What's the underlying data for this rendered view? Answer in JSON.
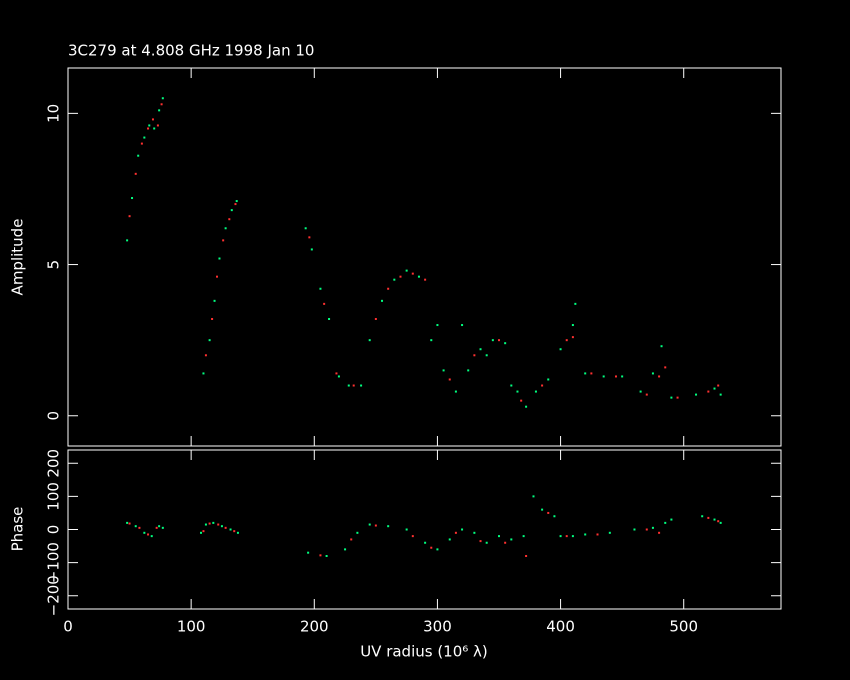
{
  "chart_data": [
    {
      "type": "scatter",
      "title": "3C279 at 4.808 GHz 1998 Jan 10",
      "y_label": "Amplitude",
      "xlim": [
        0,
        579
      ],
      "ylim": [
        -1,
        11.5
      ],
      "yticks": [
        0,
        5,
        10
      ],
      "series": [
        {
          "color": "#00ff80",
          "x": [
            48,
            52,
            57,
            62,
            66,
            70,
            74,
            77,
            110,
            115,
            119,
            123,
            128,
            133,
            137,
            193,
            198,
            205,
            212,
            220,
            228,
            238,
            245,
            255,
            265,
            275,
            285,
            295,
            305,
            315,
            325,
            335,
            345,
            355,
            365,
            372,
            380,
            390,
            400,
            410,
            412,
            420,
            435,
            450,
            465,
            475,
            482,
            490,
            510,
            525,
            530,
            300,
            320,
            340,
            360
          ],
          "values": [
            5.8,
            7.2,
            8.6,
            9.2,
            9.6,
            9.5,
            10.1,
            10.5,
            1.4,
            2.5,
            3.8,
            5.2,
            6.2,
            6.8,
            7.1,
            6.2,
            5.5,
            4.2,
            3.2,
            1.3,
            1.0,
            1.0,
            2.5,
            3.8,
            4.5,
            4.8,
            4.6,
            2.5,
            1.5,
            0.8,
            1.5,
            2.2,
            2.5,
            2.4,
            0.8,
            0.3,
            0.8,
            1.2,
            2.2,
            3.0,
            3.7,
            1.4,
            1.3,
            1.3,
            0.8,
            1.4,
            2.3,
            0.6,
            0.7,
            0.9,
            0.7,
            3.0,
            3.0,
            2.0,
            1.0
          ]
        },
        {
          "color": "#ff3030",
          "x": [
            50,
            55,
            60,
            65,
            69,
            73,
            76,
            112,
            117,
            121,
            126,
            131,
            136,
            196,
            208,
            218,
            232,
            250,
            260,
            270,
            280,
            290,
            310,
            330,
            350,
            368,
            385,
            405,
            410,
            425,
            445,
            470,
            480,
            485,
            495,
            520,
            528
          ],
          "values": [
            6.6,
            8.0,
            9.0,
            9.5,
            9.8,
            9.6,
            10.3,
            2.0,
            3.2,
            4.6,
            5.8,
            6.5,
            7.0,
            5.9,
            3.7,
            1.4,
            1.0,
            3.2,
            4.2,
            4.6,
            4.7,
            4.5,
            1.2,
            2.0,
            2.5,
            0.5,
            1.0,
            2.5,
            2.6,
            1.4,
            1.3,
            0.7,
            1.3,
            1.6,
            0.6,
            0.8,
            1.0
          ]
        }
      ]
    },
    {
      "type": "scatter",
      "y_label": "Phase",
      "x_label": "UV radius  (10⁶ λ)",
      "xlim": [
        0,
        579
      ],
      "ylim": [
        -240,
        240
      ],
      "xticks": [
        0,
        100,
        200,
        300,
        400,
        500
      ],
      "yticks": [
        {
          "value": -200,
          "label": "−200"
        },
        {
          "value": -100,
          "label": "−100"
        },
        0,
        100,
        200
      ],
      "series": [
        {
          "color": "#00ff80",
          "x": [
            48,
            55,
            62,
            68,
            74,
            77,
            108,
            112,
            118,
            125,
            132,
            138,
            195,
            210,
            225,
            235,
            245,
            260,
            275,
            290,
            300,
            310,
            320,
            330,
            340,
            350,
            360,
            370,
            378,
            385,
            395,
            400,
            410,
            420,
            440,
            460,
            475,
            485,
            490,
            515,
            525,
            530
          ],
          "values": [
            20,
            10,
            -10,
            -20,
            10,
            5,
            -10,
            15,
            20,
            10,
            0,
            -10,
            -70,
            -80,
            -60,
            -10,
            15,
            10,
            0,
            -40,
            -60,
            -30,
            0,
            -10,
            -40,
            -20,
            -30,
            -20,
            100,
            60,
            40,
            -20,
            -20,
            -15,
            -10,
            0,
            5,
            20,
            30,
            40,
            30,
            20
          ]
        },
        {
          "color": "#ff3030",
          "x": [
            50,
            58,
            65,
            72,
            110,
            115,
            122,
            128,
            135,
            205,
            230,
            250,
            280,
            295,
            315,
            335,
            355,
            372,
            390,
            405,
            430,
            470,
            480,
            520,
            528
          ],
          "values": [
            18,
            5,
            -15,
            5,
            -5,
            18,
            15,
            5,
            -5,
            -78,
            -30,
            12,
            -20,
            -55,
            -10,
            -35,
            -40,
            -80,
            50,
            -20,
            -15,
            0,
            -10,
            35,
            25
          ]
        }
      ]
    }
  ]
}
